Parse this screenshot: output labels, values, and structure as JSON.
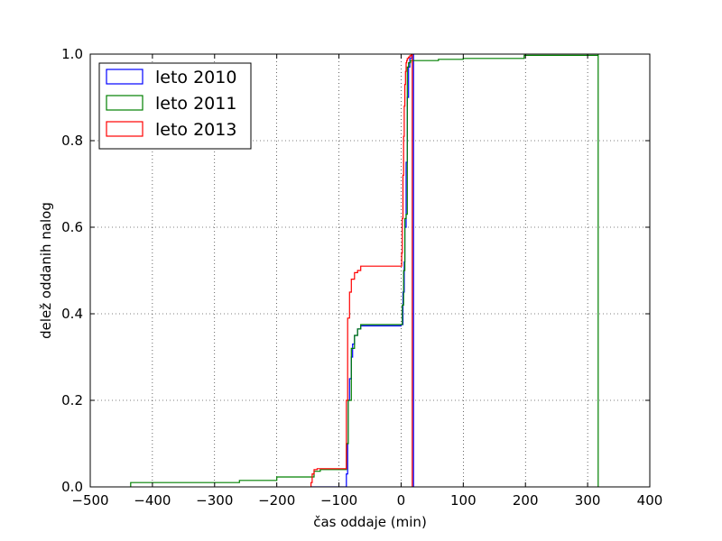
{
  "chart_data": {
    "type": "line",
    "title": "",
    "xlabel": "čas oddaje (min)",
    "ylabel": "delež oddanih nalog",
    "xlim": [
      -500,
      400
    ],
    "ylim": [
      0.0,
      1.0
    ],
    "x_ticks": [
      -500,
      -400,
      -300,
      -200,
      -100,
      0,
      100,
      200,
      300,
      400
    ],
    "x_tick_labels": [
      "−500",
      "−400",
      "−300",
      "−200",
      "−100",
      "0",
      "100",
      "200",
      "300",
      "400"
    ],
    "y_ticks": [
      0.0,
      0.2,
      0.4,
      0.6,
      0.8,
      1.0
    ],
    "y_tick_labels": [
      "0.0",
      "0.2",
      "0.4",
      "0.6",
      "0.8",
      "1.0"
    ],
    "grid": true,
    "legend_position": "top-left",
    "series": [
      {
        "name": "leto 2010",
        "color": "#0000ff",
        "x": [
          -145,
          -140,
          -92,
          -88,
          -86,
          -85,
          -83,
          -80,
          -78,
          -75,
          -70,
          -65,
          0,
          3,
          5,
          6,
          8,
          10,
          12,
          14,
          17,
          20
        ],
        "y": [
          0.0,
          0.0,
          0.0,
          0.03,
          0.1,
          0.2,
          0.25,
          0.3,
          0.33,
          0.35,
          0.365,
          0.372,
          0.375,
          0.45,
          0.52,
          0.6,
          0.75,
          0.9,
          0.97,
          0.99,
          1.0,
          1.0
        ]
      },
      {
        "name": "leto 2011",
        "color": "#008000",
        "x": [
          -435,
          -260,
          -200,
          -140,
          -130,
          -95,
          -88,
          -85,
          -80,
          -75,
          -70,
          -65,
          0,
          2,
          4,
          6,
          8,
          10,
          12,
          15,
          18,
          25,
          60,
          100,
          198,
          317
        ],
        "y": [
          0.01,
          0.015,
          0.023,
          0.036,
          0.04,
          0.04,
          0.1,
          0.2,
          0.32,
          0.35,
          0.365,
          0.375,
          0.375,
          0.42,
          0.5,
          0.62,
          0.63,
          0.97,
          0.98,
          0.985,
          0.985,
          0.985,
          0.988,
          0.99,
          0.997,
          1.0
        ]
      },
      {
        "name": "leto 2013",
        "color": "#ff0000",
        "x": [
          -145,
          -143,
          -140,
          -135,
          -90,
          -88,
          -86,
          -83,
          -80,
          -75,
          -70,
          -65,
          0,
          1,
          2,
          3,
          4,
          5,
          6,
          7,
          8,
          9,
          10,
          12,
          14,
          16,
          18
        ],
        "y": [
          0.01,
          0.03,
          0.04,
          0.042,
          0.042,
          0.2,
          0.39,
          0.45,
          0.48,
          0.495,
          0.5,
          0.51,
          0.51,
          0.54,
          0.62,
          0.72,
          0.81,
          0.88,
          0.93,
          0.96,
          0.98,
          0.985,
          0.99,
          0.993,
          0.996,
          0.999,
          1.0
        ]
      }
    ]
  }
}
